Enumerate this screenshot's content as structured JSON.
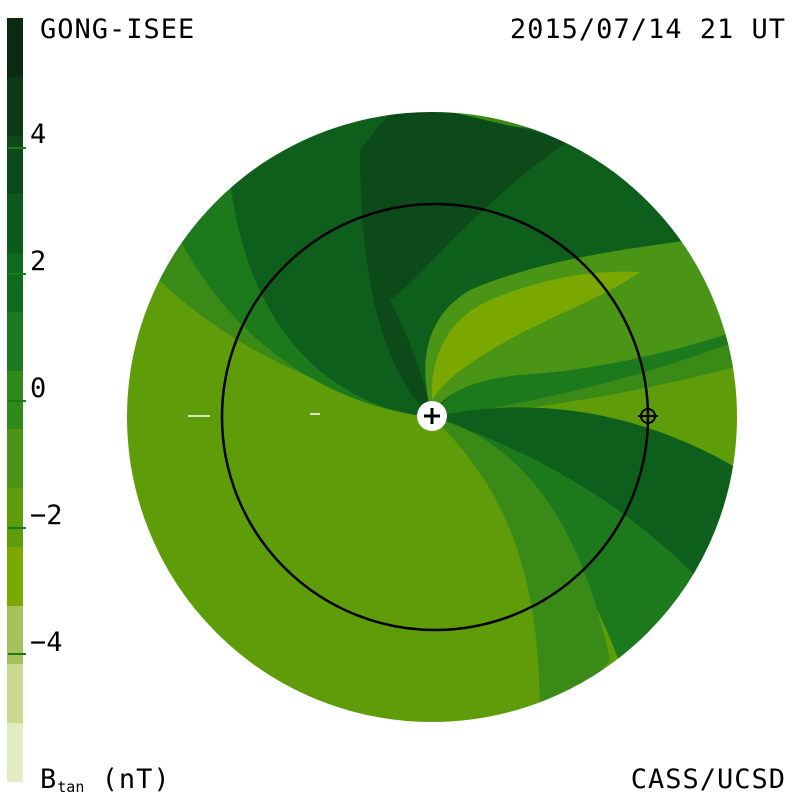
{
  "header": {
    "source": "GONG-ISEE",
    "datetime": "2015/07/14 21 UT",
    "credit": "CASS/UCSD"
  },
  "colorbar": {
    "quantity": "B",
    "subscript": "tan",
    "unit": "(nT)",
    "tick_labels": [
      "4",
      "2",
      "0",
      "−2",
      "−4"
    ],
    "tick_values": [
      4,
      2,
      0,
      -2,
      -4
    ],
    "range": [
      -6,
      6
    ],
    "levels_top_to_bottom": [
      "#0a2a12",
      "#0a3a16",
      "#0b4a1a",
      "#0c5a1c",
      "#0d6b1e",
      "#1a7a1c",
      "#2f8a1a",
      "#4a9416",
      "#5f9c0a",
      "#7aaa00",
      "#a6c25a",
      "#c9d98e",
      "#e2ecc2"
    ]
  },
  "map": {
    "center_symbol": "+",
    "earth_symbol": "⊕",
    "sector_colors": {
      "darkest": "#0c4a1a",
      "dark": "#0f5f1c",
      "mid": "#1c7a1c",
      "green": "#3a8a18",
      "olive": "#5f9c0a",
      "yellowgreen": "#7aa800",
      "lightest": "#8cb600"
    }
  }
}
